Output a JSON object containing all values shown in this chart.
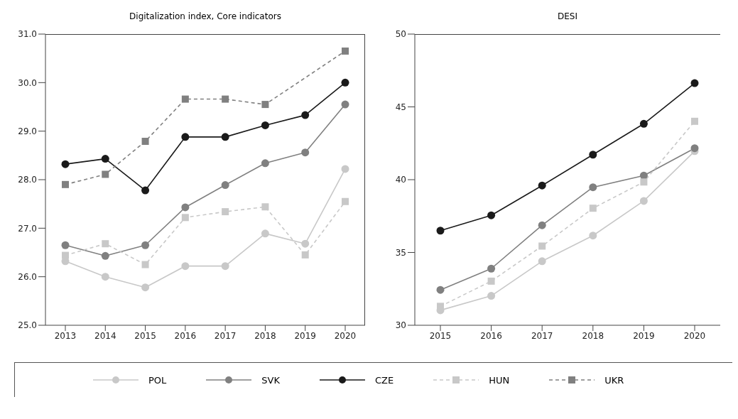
{
  "chart_data": [
    {
      "type": "line",
      "title": "Digitalization index, Core indicators",
      "categories": [
        "2013",
        "2014",
        "2015",
        "2016",
        "2017",
        "2018",
        "2019",
        "2020"
      ],
      "ylim": [
        25,
        31
      ],
      "yticks": [
        {
          "value": 25,
          "label": "25.0"
        },
        {
          "value": 26,
          "label": "26.0"
        },
        {
          "value": 27,
          "label": "27.0"
        },
        {
          "value": 28,
          "label": "28.0"
        },
        {
          "value": 29,
          "label": "29.0"
        },
        {
          "value": 30,
          "label": "30.0"
        },
        {
          "value": 31,
          "label": "31.0"
        }
      ],
      "grid": false,
      "legend": "bottom",
      "series": [
        {
          "name": "POL",
          "color": "#c8c8c8",
          "marker": "circle",
          "line_style": "solid",
          "values": [
            26.32,
            26.0,
            25.78,
            26.22,
            26.22,
            26.89,
            26.68,
            28.22
          ]
        },
        {
          "name": "SVK",
          "color": "#808080",
          "marker": "circle",
          "line_style": "solid",
          "values": [
            26.65,
            26.43,
            26.65,
            27.43,
            27.89,
            28.34,
            28.56,
            29.55
          ]
        },
        {
          "name": "CZE",
          "color": "#1a1a1a",
          "marker": "circle",
          "line_style": "solid",
          "values": [
            28.32,
            28.43,
            27.78,
            28.88,
            28.88,
            29.12,
            29.33,
            30.0
          ]
        },
        {
          "name": "HUN",
          "color": "#c8c8c8",
          "marker": "square",
          "line_style": "dashed",
          "values": [
            26.44,
            26.68,
            26.25,
            27.22,
            27.34,
            27.44,
            26.45,
            27.55
          ]
        },
        {
          "name": "UKR",
          "color": "#808080",
          "marker": "square",
          "line_style": "dashed",
          "values": [
            27.9,
            28.11,
            28.79,
            29.66,
            29.66,
            29.55,
            null,
            30.65
          ]
        }
      ]
    },
    {
      "type": "line",
      "title": "DESI",
      "categories": [
        "2015",
        "2016",
        "2017",
        "2018",
        "2019",
        "2020"
      ],
      "ylim": [
        30,
        50
      ],
      "yticks": [
        30,
        35,
        40,
        45,
        50
      ],
      "grid": false,
      "series": [
        {
          "color": "#c8c8c8",
          "marker": "circle",
          "line_style": "solid",
          "values": [
            31.03,
            32.02,
            34.4,
            36.16,
            38.54,
            41.96
          ]
        },
        {
          "color": "#808080",
          "marker": "circle",
          "line_style": "solid",
          "values": [
            32.43,
            33.89,
            36.87,
            39.48,
            40.28,
            42.16
          ]
        },
        {
          "color": "#1a1a1a",
          "marker": "circle",
          "line_style": "solid",
          "values": [
            36.5,
            37.55,
            39.6,
            41.72,
            43.84,
            46.63
          ]
        },
        {
          "color": "#c8c8c8",
          "marker": "square",
          "line_style": "dashed",
          "values": [
            31.3,
            33.03,
            35.44,
            38.04,
            39.84,
            44.01
          ]
        }
      ]
    }
  ]
}
